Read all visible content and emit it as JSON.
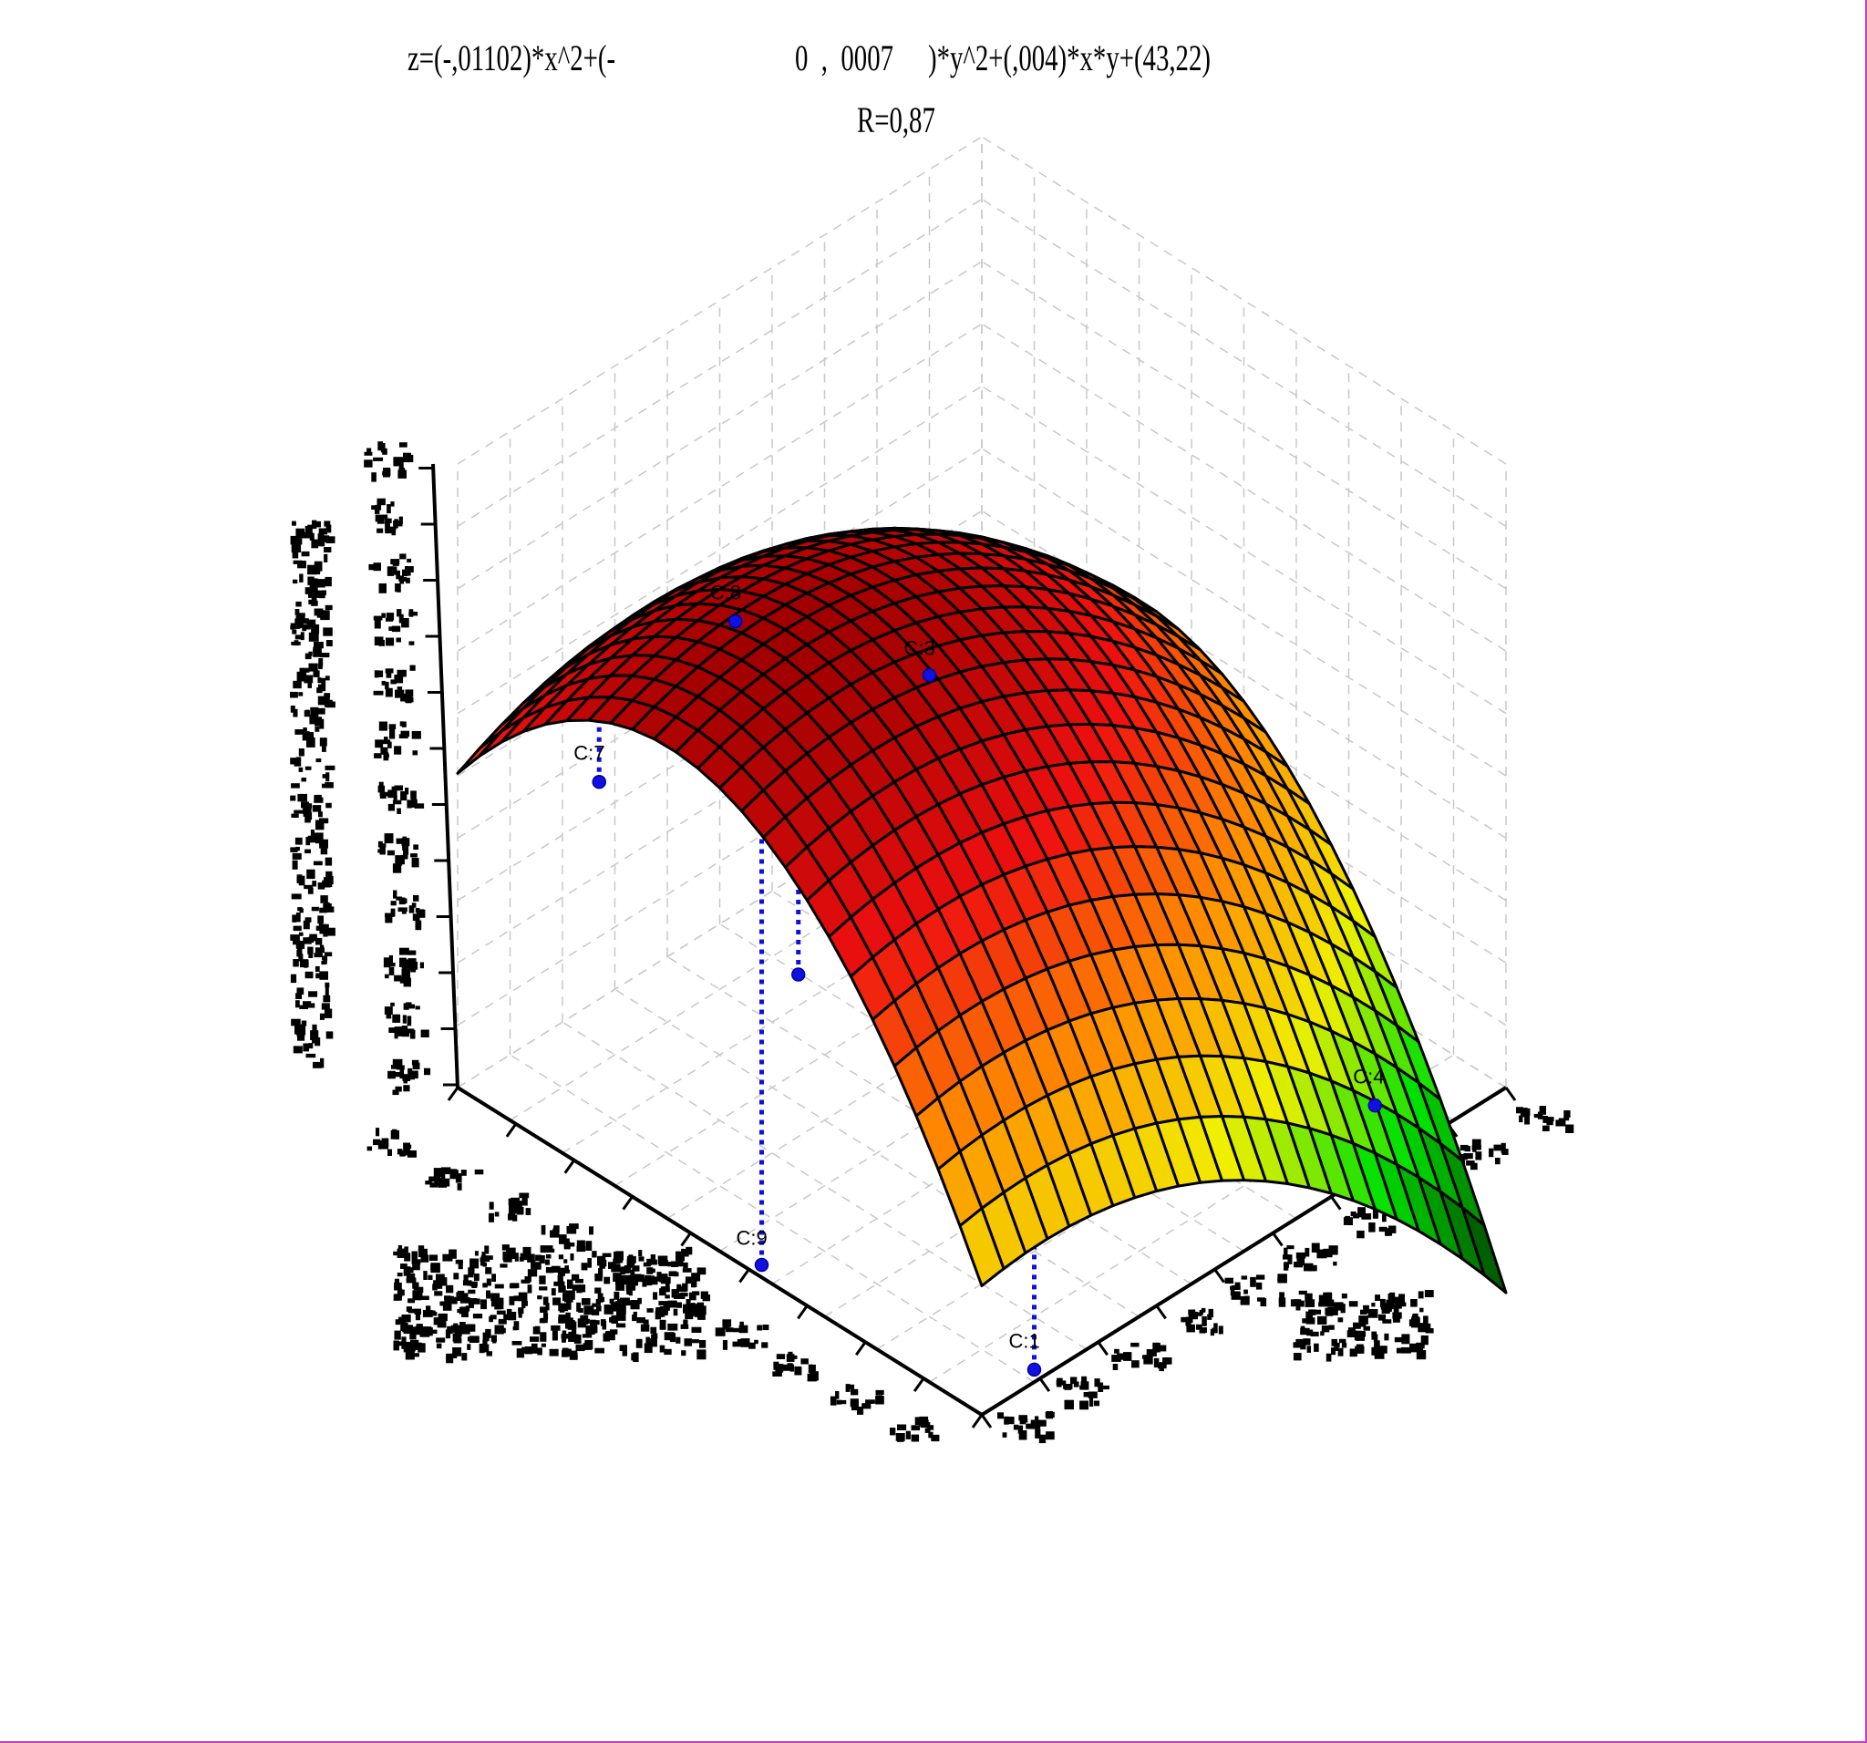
{
  "title": {
    "eq_part1": "z=(-,01102)*x^2+(-",
    "eq_part2": "0  ,  0007",
    "eq_part3": ")*y^2+(,004)*x*y+(43,22)",
    "r_value": "R=0,87"
  },
  "chart_data": {
    "type": "surface3d",
    "equation": "z = -0.01102*x^2 - 0.0007*y^2 + 0.004*x*y + 43.22",
    "surface_gradient": [
      "#006000",
      "#00e000",
      "#f0f000",
      "#ff8c00",
      "#ee1010",
      "#a00000"
    ],
    "grid_lines": "dashed",
    "points": [
      {
        "label": "C:1"
      },
      {
        "label": "C:3"
      },
      {
        "label": "C:4"
      },
      {
        "label": "C:7"
      },
      {
        "label": "C:8"
      },
      {
        "label": "C:9"
      },
      {
        "label": ""
      }
    ],
    "point_color": "#1010e0"
  },
  "colors": {
    "frame": "#ffffff",
    "edge_accent": "#c040c0",
    "axis": "#000000",
    "grid": "#c8c8c8"
  }
}
